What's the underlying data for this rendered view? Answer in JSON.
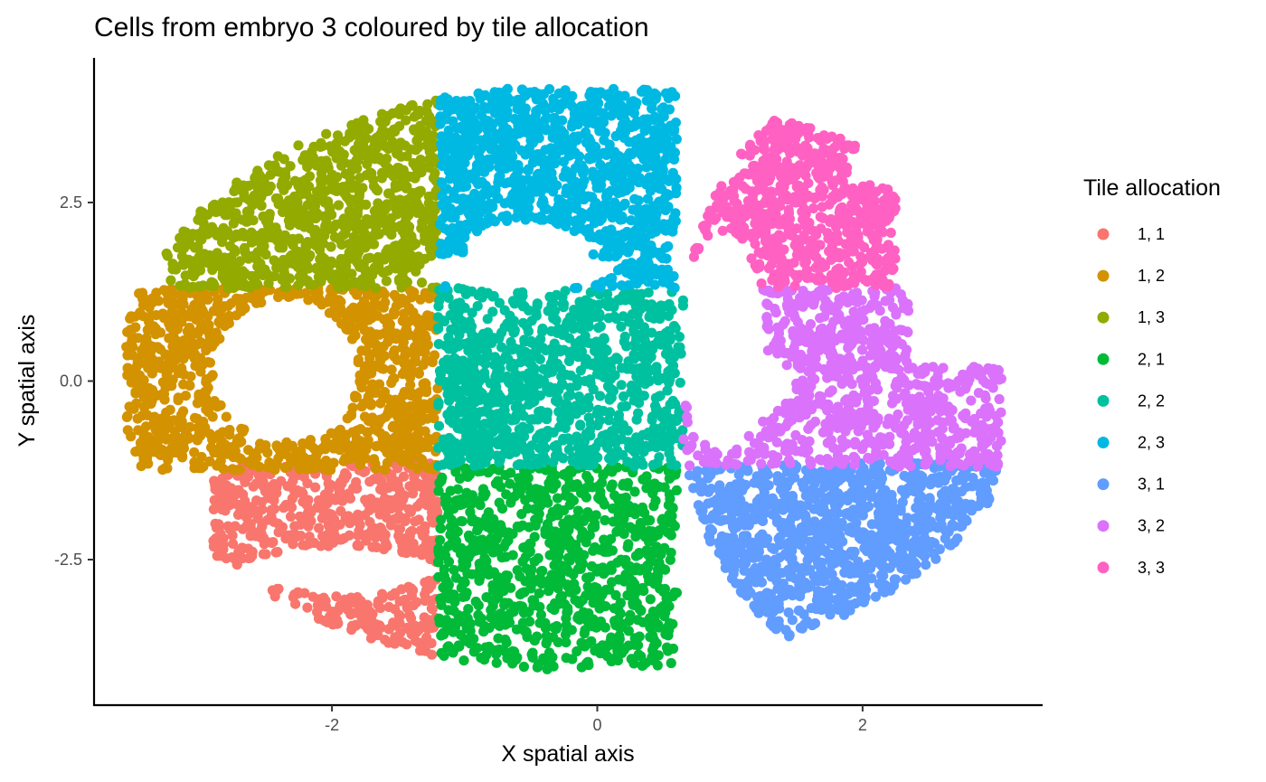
{
  "chart_data": {
    "type": "scatter",
    "title": "Cells from embryo 3 coloured by tile allocation",
    "xlabel": "X spatial axis",
    "ylabel": "Y spatial axis",
    "xlim": [
      -3.65,
      3.3
    ],
    "ylim": [
      -4.45,
      4.15
    ],
    "x_ticks": [
      {
        "value": -2,
        "label": "-2"
      },
      {
        "value": 0,
        "label": "0"
      },
      {
        "value": 2,
        "label": "2"
      }
    ],
    "y_ticks": [
      {
        "value": -2.5,
        "label": "-2.5"
      },
      {
        "value": 0,
        "label": "0.0"
      },
      {
        "value": 2.5,
        "label": "2.5"
      }
    ],
    "grid": false,
    "legend": {
      "title": "Tile allocation",
      "position": "right"
    },
    "tile_boundaries": {
      "x": [
        -1.2,
        0.65
      ],
      "y": [
        -1.2,
        1.3
      ]
    },
    "series": [
      {
        "name": "1, 1",
        "color": "#F8766D",
        "x_range": [
          -2.9,
          -1.2
        ],
        "y_range": [
          -4.05,
          -1.15
        ],
        "approx_points": 650
      },
      {
        "name": "1, 2",
        "color": "#D39200",
        "x_range": [
          -3.55,
          -1.2
        ],
        "y_range": [
          -1.25,
          1.3
        ],
        "approx_points": 1000
      },
      {
        "name": "1, 3",
        "color": "#93AA00",
        "x_range": [
          -3.25,
          -1.2
        ],
        "y_range": [
          1.3,
          3.95
        ],
        "approx_points": 900
      },
      {
        "name": "2, 1",
        "color": "#00BA38",
        "x_range": [
          -1.2,
          0.65
        ],
        "y_range": [
          -4.15,
          -1.2
        ],
        "approx_points": 900
      },
      {
        "name": "2, 2",
        "color": "#00C19F",
        "x_range": [
          -1.2,
          0.65
        ],
        "y_range": [
          -1.2,
          1.3
        ],
        "approx_points": 1000
      },
      {
        "name": "2, 3",
        "color": "#00B9E3",
        "x_range": [
          -1.2,
          0.65
        ],
        "y_range": [
          1.3,
          4.1
        ],
        "approx_points": 1100
      },
      {
        "name": "3, 1",
        "color": "#619CFF",
        "x_range": [
          0.65,
          3.05
        ],
        "y_range": [
          -3.95,
          -1.15
        ],
        "approx_points": 1000
      },
      {
        "name": "3, 2",
        "color": "#DB72FB",
        "x_range": [
          0.65,
          3.05
        ],
        "y_range": [
          -1.2,
          1.3
        ],
        "approx_points": 800
      },
      {
        "name": "3, 3",
        "color": "#FF61C3",
        "x_range": [
          0.65,
          2.25
        ],
        "y_range": [
          1.3,
          4.0
        ],
        "approx_points": 650
      }
    ]
  }
}
